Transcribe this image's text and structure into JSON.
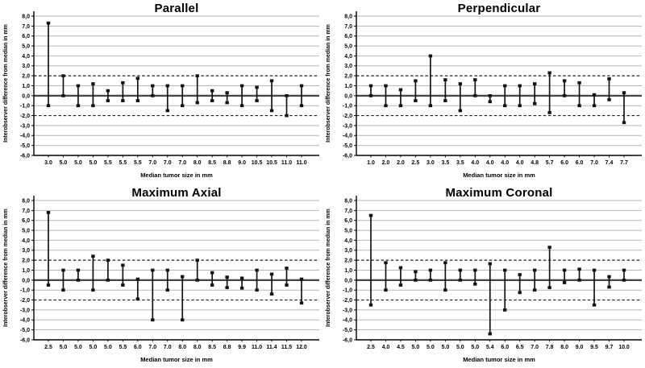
{
  "figure": {
    "background": "#ffffff",
    "layout": "2x2-grid"
  },
  "style": {
    "grid_color": "#b7b7b7",
    "zero_line_color": "#454545",
    "ref_line_color": "#1f1f1f",
    "axis_color": "#000000",
    "bar_color": "#141414",
    "text_color": "#000000"
  },
  "chart_data": [
    {
      "type": "errorbar",
      "title": "Parallel",
      "xlabel": "Median tumor size in mm",
      "ylabel": "Interobserver difference from median in mm",
      "ylim": [
        -6.0,
        8.0
      ],
      "grid": true,
      "ytick_labels": [
        "8,0",
        "7,0",
        "6,0",
        "5,0",
        "4,0",
        "3,0",
        "2,0",
        "1,0",
        "0,0",
        "-1,0",
        "-2,0",
        "-3,0",
        "-4,0",
        "-5,0",
        "-6,0"
      ],
      "ref_lines": {
        "solid": 0.0,
        "dashed": [
          2.0,
          -2.0
        ]
      },
      "categories": [
        "3.0",
        "5.0",
        "5.0",
        "5.0",
        "5.5",
        "5.5",
        "5.5",
        "7.0",
        "7.0",
        "7.0",
        "8.0",
        "8.5",
        "8.8",
        "9.0",
        "10.5",
        "10.5",
        "11.0",
        "11.0"
      ],
      "ranges": [
        {
          "low": -1.0,
          "high": 7.3
        },
        {
          "low": 0.0,
          "high": 2.0
        },
        {
          "low": -1.0,
          "high": 1.0
        },
        {
          "low": -1.0,
          "high": 1.2
        },
        {
          "low": -0.5,
          "high": 0.5
        },
        {
          "low": -0.5,
          "high": 1.3
        },
        {
          "low": -0.5,
          "high": 1.75
        },
        {
          "low": 0.0,
          "high": 1.0
        },
        {
          "low": -1.5,
          "high": 1.0
        },
        {
          "low": -1.0,
          "high": 1.0
        },
        {
          "low": -0.7,
          "high": 2.0
        },
        {
          "low": -0.5,
          "high": 0.5
        },
        {
          "low": -0.7,
          "high": 0.3
        },
        {
          "low": -1.0,
          "high": 1.0
        },
        {
          "low": -0.5,
          "high": 0.85
        },
        {
          "low": -1.5,
          "high": 1.5
        },
        {
          "low": -2.0,
          "high": 0.0
        },
        {
          "low": -1.0,
          "high": 1.0
        }
      ]
    },
    {
      "type": "errorbar",
      "title": "Perpendicular",
      "xlabel": "Median tumor size in mm",
      "ylabel": "Interobserver difference from median in mm",
      "ylim": [
        -6.0,
        8.0
      ],
      "grid": true,
      "ytick_labels": [
        "8,0",
        "7,0",
        "6,0",
        "5,0",
        "4,0",
        "3,0",
        "2,0",
        "1,0",
        "0,0",
        "-1,0",
        "-2,0",
        "-3,0",
        "-4,0",
        "-5,0",
        "-6,0"
      ],
      "ref_lines": {
        "solid": 0.0,
        "dashed": [
          2.0,
          -2.0
        ]
      },
      "categories": [
        "1.0",
        "2.0",
        "2.0",
        "2.5",
        "3.0",
        "3.5",
        "3.5",
        "4.0",
        "4.0",
        "4.0",
        "4.0",
        "4.8",
        "5.7",
        "6.0",
        "6.0",
        "7.0",
        "7.4",
        "7.7"
      ],
      "ranges": [
        {
          "low": 0.0,
          "high": 1.0
        },
        {
          "low": -1.0,
          "high": 1.0
        },
        {
          "low": -1.0,
          "high": 0.6
        },
        {
          "low": -0.5,
          "high": 1.5
        },
        {
          "low": -1.0,
          "high": 4.0
        },
        {
          "low": -0.5,
          "high": 1.6
        },
        {
          "low": -1.5,
          "high": 1.2
        },
        {
          "low": 0.0,
          "high": 1.6
        },
        {
          "low": -0.6,
          "high": 0.0
        },
        {
          "low": -1.0,
          "high": 1.0
        },
        {
          "low": -1.0,
          "high": 1.0
        },
        {
          "low": -0.8,
          "high": 1.2
        },
        {
          "low": -1.7,
          "high": 2.3
        },
        {
          "low": 0.0,
          "high": 1.5
        },
        {
          "low": -1.0,
          "high": 1.3
        },
        {
          "low": -1.0,
          "high": 0.1
        },
        {
          "low": -0.4,
          "high": 1.7
        },
        {
          "low": -2.7,
          "high": 0.3
        }
      ]
    },
    {
      "type": "errorbar",
      "title": "Maximum Axial",
      "xlabel": "Median tumor size in mm",
      "ylabel": "Interobserver difference from median in mm",
      "ylim": [
        -6.0,
        8.0
      ],
      "grid": true,
      "ytick_labels": [
        "8,0",
        "7,0",
        "6,0",
        "5,0",
        "4,0",
        "3,0",
        "2,0",
        "1,0",
        "0,0",
        "-1,0",
        "-2,0",
        "-3,0",
        "-4,0",
        "-5,0",
        "-6,0"
      ],
      "ref_lines": {
        "solid": 0.0,
        "dashed": [
          2.0,
          -2.0
        ]
      },
      "categories": [
        "2.5",
        "5.0",
        "5.0",
        "5.0",
        "5.0",
        "5.5",
        "6.0",
        "7.0",
        "7.0",
        "8.0",
        "8.0",
        "8.5",
        "8.8",
        "9.9",
        "11.0",
        "11.4",
        "11.5",
        "12.0"
      ],
      "ranges": [
        {
          "low": -0.5,
          "high": 6.8
        },
        {
          "low": -1.0,
          "high": 1.0
        },
        {
          "low": 0.0,
          "high": 1.0
        },
        {
          "low": -1.0,
          "high": 2.4
        },
        {
          "low": 0.0,
          "high": 2.0
        },
        {
          "low": -0.5,
          "high": 1.5
        },
        {
          "low": -1.9,
          "high": 0.1
        },
        {
          "low": -4.0,
          "high": 1.0
        },
        {
          "low": -1.0,
          "high": 1.0
        },
        {
          "low": -4.0,
          "high": 0.35
        },
        {
          "low": 0.0,
          "high": 2.0
        },
        {
          "low": -0.5,
          "high": 0.75
        },
        {
          "low": -0.75,
          "high": 0.3
        },
        {
          "low": -0.8,
          "high": 0.2
        },
        {
          "low": -1.0,
          "high": 1.0
        },
        {
          "low": -1.4,
          "high": 0.6
        },
        {
          "low": -0.5,
          "high": 1.2
        },
        {
          "low": -2.3,
          "high": 0.1
        }
      ]
    },
    {
      "type": "errorbar",
      "title": "Maximum Coronal",
      "xlabel": "Median tumor size in mm",
      "ylabel": "Interobserver difference from median in mm",
      "ylim": [
        -6.0,
        8.0
      ],
      "grid": true,
      "ytick_labels": [
        "8,0",
        "7,0",
        "6,0",
        "5,0",
        "4,0",
        "3,0",
        "2,0",
        "1,0",
        "0,0",
        "-1,0",
        "-2,0",
        "-3,0",
        "-4,0",
        "-5,0",
        "-6,0"
      ],
      "ref_lines": {
        "solid": 0.0,
        "dashed": [
          2.0,
          -2.0
        ]
      },
      "categories": [
        "2.5",
        "4.0",
        "4.5",
        "5.0",
        "5.0",
        "5.0",
        "5.0",
        "5.0",
        "5.4",
        "6.0",
        "6.5",
        "7.0",
        "7.8",
        "8.0",
        "9.0",
        "9.5",
        "9.7",
        "10.0"
      ],
      "ranges": [
        {
          "low": -2.5,
          "high": 6.5
        },
        {
          "low": -1.0,
          "high": 1.75
        },
        {
          "low": -0.5,
          "high": 1.25
        },
        {
          "low": 0.0,
          "high": 0.85
        },
        {
          "low": 0.0,
          "high": 1.0
        },
        {
          "low": -1.0,
          "high": 1.75
        },
        {
          "low": 0.0,
          "high": 1.0
        },
        {
          "low": -0.4,
          "high": 1.0
        },
        {
          "low": -5.4,
          "high": 1.65
        },
        {
          "low": -3.0,
          "high": 1.0
        },
        {
          "low": -1.25,
          "high": 0.55
        },
        {
          "low": -1.0,
          "high": 1.0
        },
        {
          "low": -0.75,
          "high": 3.3
        },
        {
          "low": -0.25,
          "high": 1.0
        },
        {
          "low": 0.0,
          "high": 1.1
        },
        {
          "low": -2.5,
          "high": 1.0
        },
        {
          "low": -0.7,
          "high": 0.35
        },
        {
          "low": 0.0,
          "high": 1.0
        }
      ]
    }
  ]
}
